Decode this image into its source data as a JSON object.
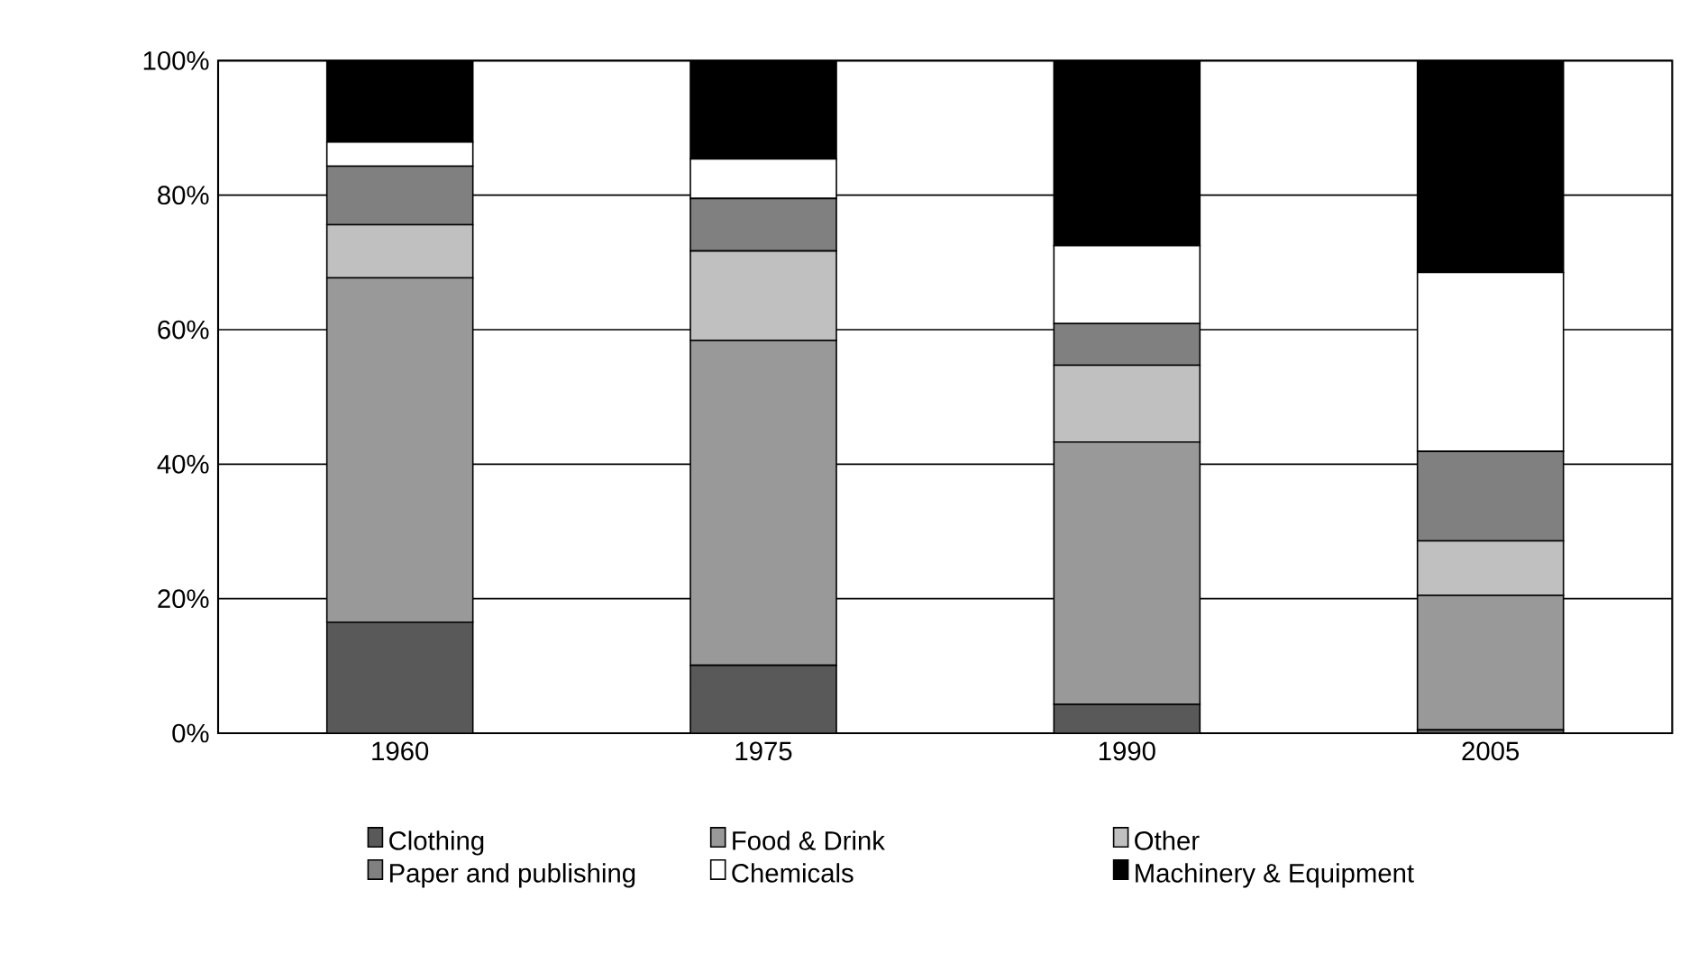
{
  "chart_data": {
    "type": "bar",
    "stacked": true,
    "categories": [
      "1960",
      "1975",
      "1990",
      "2005"
    ],
    "series": [
      {
        "name": "Clothing",
        "color": "#595959",
        "values": [
          16.5,
          10.1,
          4.3,
          0.5
        ]
      },
      {
        "name": "Food & Drink",
        "color": "#999999",
        "values": [
          51.2,
          48.3,
          39.0,
          20.0
        ]
      },
      {
        "name": "Other",
        "color": "#c0c0c0",
        "values": [
          7.9,
          13.3,
          11.4,
          8.1
        ]
      },
      {
        "name": "Paper and publishing",
        "color": "#808080",
        "values": [
          8.7,
          7.8,
          6.2,
          13.3
        ]
      },
      {
        "name": "Chemicals",
        "color": "#ffffff",
        "values": [
          3.6,
          5.9,
          11.6,
          26.6
        ]
      },
      {
        "name": "Machinery & Equipment",
        "color": "#000000",
        "values": [
          12.1,
          14.6,
          27.5,
          31.5
        ]
      }
    ],
    "ylim": [
      0,
      100
    ],
    "yticks": [
      {
        "value": 0,
        "label": "0%"
      },
      {
        "value": 20,
        "label": "20%"
      },
      {
        "value": 40,
        "label": "40%"
      },
      {
        "value": 60,
        "label": "60%"
      },
      {
        "value": 80,
        "label": "80%"
      },
      {
        "value": 100,
        "label": "100%"
      }
    ],
    "grid": "y",
    "legend": "bottom"
  }
}
